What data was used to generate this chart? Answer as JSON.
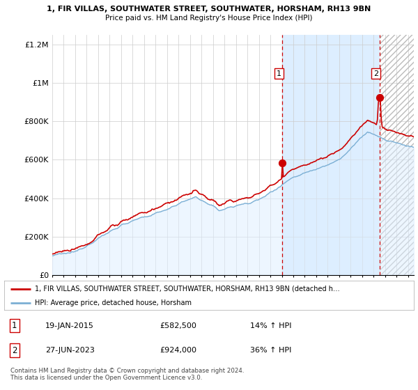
{
  "title1": "1, FIR VILLAS, SOUTHWATER STREET, SOUTHWATER, HORSHAM, RH13 9BN",
  "title2": "Price paid vs. HM Land Registry's House Price Index (HPI)",
  "ylabel_ticks": [
    "£0",
    "£200K",
    "£400K",
    "£600K",
    "£800K",
    "£1M",
    "£1.2M"
  ],
  "ytick_vals": [
    0,
    200000,
    400000,
    600000,
    800000,
    1000000,
    1200000
  ],
  "ylim": [
    0,
    1250000
  ],
  "xlim_start": 1995.0,
  "xlim_end": 2026.5,
  "sale1_year": 2015.05,
  "sale1_price": 582500,
  "sale2_year": 2023.5,
  "sale2_price": 924000,
  "sale1_label": "1",
  "sale2_label": "2",
  "legend_line1": "1, FIR VILLAS, SOUTHWATER STREET, SOUTHWATER, HORSHAM, RH13 9BN (detached h…",
  "legend_line2": "HPI: Average price, detached house, Horsham",
  "table_row1_num": "1",
  "table_row1_date": "19-JAN-2015",
  "table_row1_price": "£582,500",
  "table_row1_hpi": "14% ↑ HPI",
  "table_row2_num": "2",
  "table_row2_date": "27-JUN-2023",
  "table_row2_price": "£924,000",
  "table_row2_hpi": "36% ↑ HPI",
  "footer": "Contains HM Land Registry data © Crown copyright and database right 2024.\nThis data is licensed under the Open Government Licence v3.0.",
  "hpi_color": "#7bafd4",
  "price_color": "#cc0000",
  "vline1_color": "#cc0000",
  "vline2_color": "#cc0000",
  "bg_color": "#ffffff",
  "grid_color": "#cccccc",
  "shade_between_color": "#ddeeff",
  "shade_after_color": "#e8e8e8"
}
